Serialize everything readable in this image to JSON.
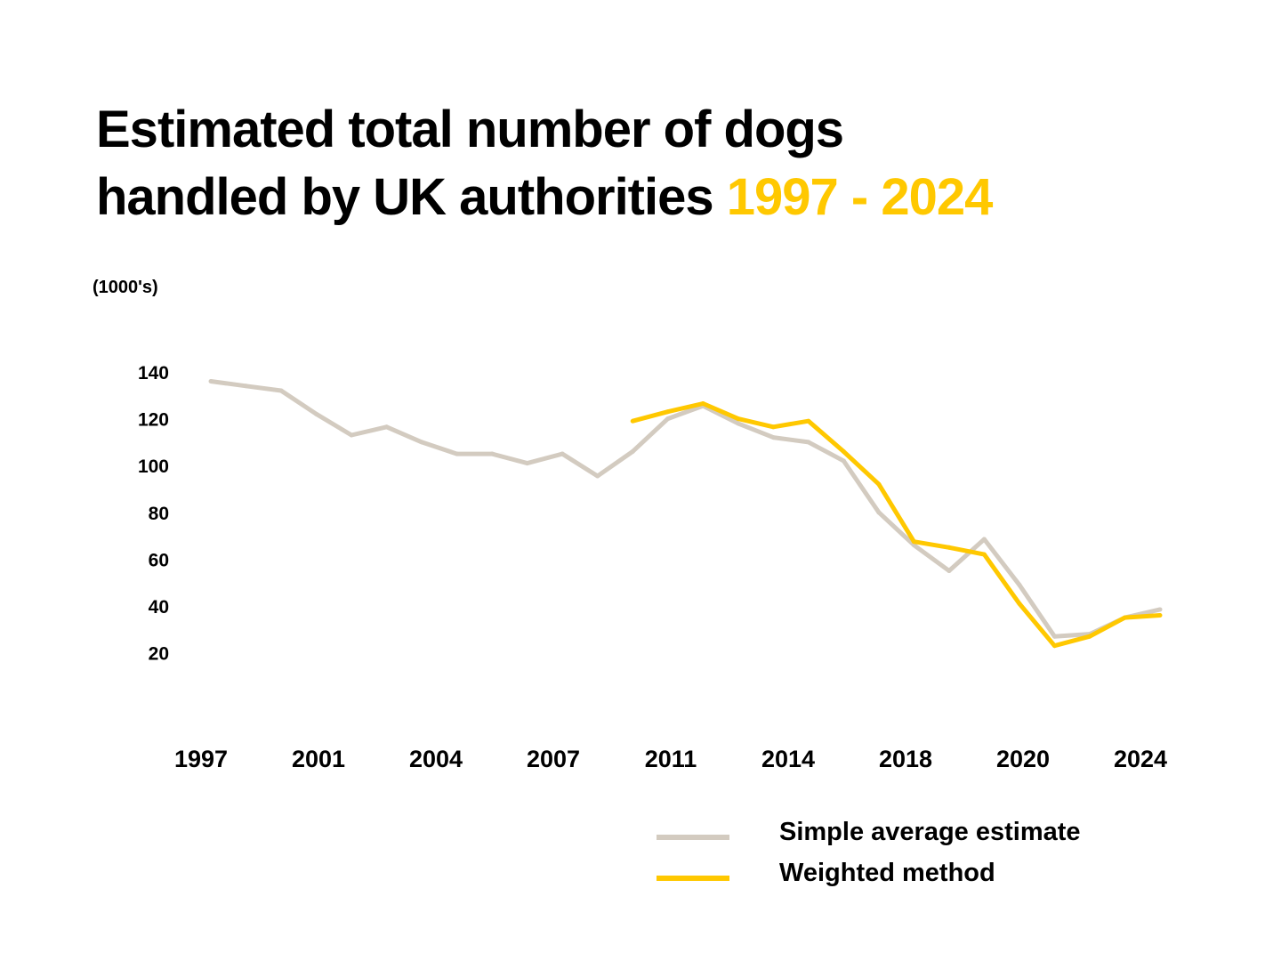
{
  "title": {
    "line1": "Estimated total number of dogs",
    "line2": "handled by UK authorities",
    "highlight": "1997 - 2024"
  },
  "chart_data": {
    "type": "line",
    "title": "Estimated total number of dogs handled by UK authorities 1997 - 2024",
    "ylabel": "(1000's)",
    "ylim": [
      10,
      145
    ],
    "yticks": [
      140,
      120,
      100,
      80,
      60,
      40,
      20
    ],
    "xtick_labels": [
      "1997",
      "2001",
      "2004",
      "2007",
      "2011",
      "2014",
      "2018",
      "2020",
      "2024"
    ],
    "grid": false,
    "legend_position": "bottom-right",
    "x": [
      1997,
      1998,
      1999,
      2000,
      2001,
      2002,
      2003,
      2004,
      2005,
      2006,
      2007,
      2008,
      2009,
      2010,
      2011,
      2012,
      2013,
      2014,
      2015,
      2016,
      2017,
      2018,
      2019,
      2020,
      2021,
      2022,
      2023,
      2024
    ],
    "series": [
      {
        "name": "Simple average estimate",
        "color": "#D3CBC0",
        "values": [
          136,
          134,
          132,
          122,
          113,
          116.5,
          110,
          105,
          105,
          101,
          105,
          95.5,
          106,
          120,
          125.5,
          118,
          112,
          110,
          102,
          80,
          66,
          55,
          68.5,
          49,
          27,
          28,
          35,
          38.5
        ]
      },
      {
        "name": "Weighted method",
        "color": "#FFC800",
        "values": [
          null,
          null,
          null,
          null,
          null,
          null,
          null,
          null,
          null,
          null,
          null,
          null,
          119,
          123,
          126.5,
          120,
          116.5,
          119,
          106,
          92,
          67.5,
          65,
          62,
          41,
          23,
          27,
          35,
          36
        ]
      }
    ]
  }
}
